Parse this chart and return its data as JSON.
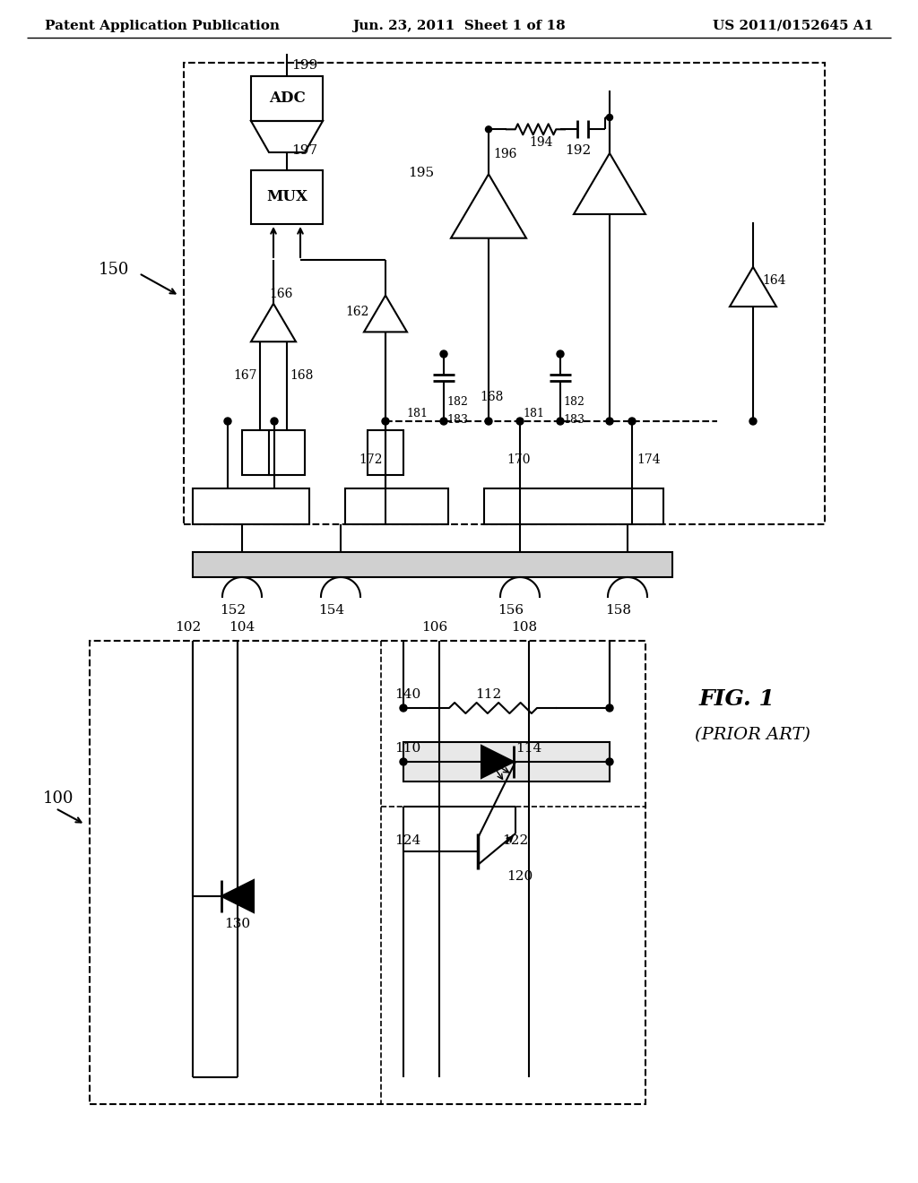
{
  "header_left": "Patent Application Publication",
  "header_center": "Jun. 23, 2011  Sheet 1 of 18",
  "header_right": "US 2011/0152645 A1",
  "fig_label": "FIG. 1",
  "fig_sublabel": "(PRIOR ART)",
  "bg_color": "#ffffff",
  "line_color": "#000000"
}
